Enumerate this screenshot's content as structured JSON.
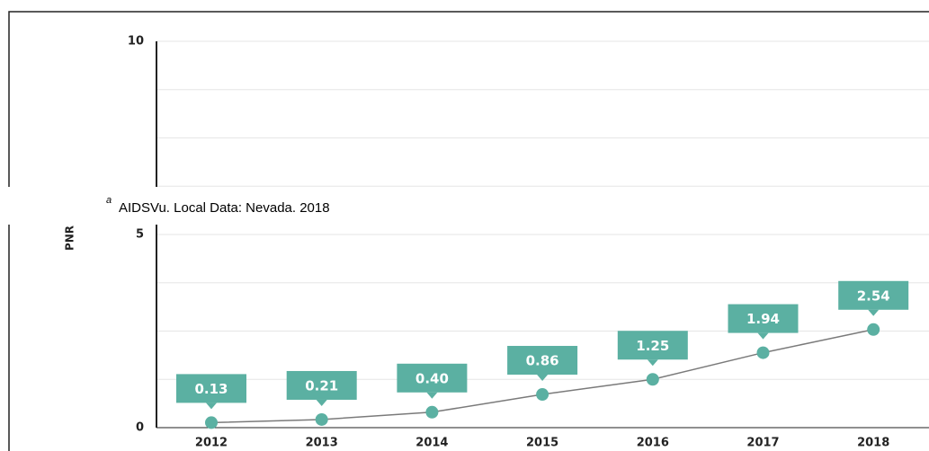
{
  "chart_data": {
    "type": "line",
    "ylabel": "PNR",
    "categories": [
      "2012",
      "2013",
      "2014",
      "2015",
      "2016",
      "2017",
      "2018"
    ],
    "values": [
      0.13,
      0.21,
      0.4,
      0.86,
      1.25,
      1.94,
      2.54
    ],
    "value_labels": [
      "0.13",
      "0.21",
      "0.40",
      "0.86",
      "1.25",
      "1.94",
      "2.54"
    ],
    "color": "#5bb0a2",
    "line_color": "#7a7a7a",
    "ylim": [
      0,
      10
    ],
    "yticks": [
      0,
      5,
      10
    ],
    "grid": true
  },
  "footnote": {
    "marker": "a",
    "text": "AIDSVu. Local Data: Nevada. 2018"
  }
}
